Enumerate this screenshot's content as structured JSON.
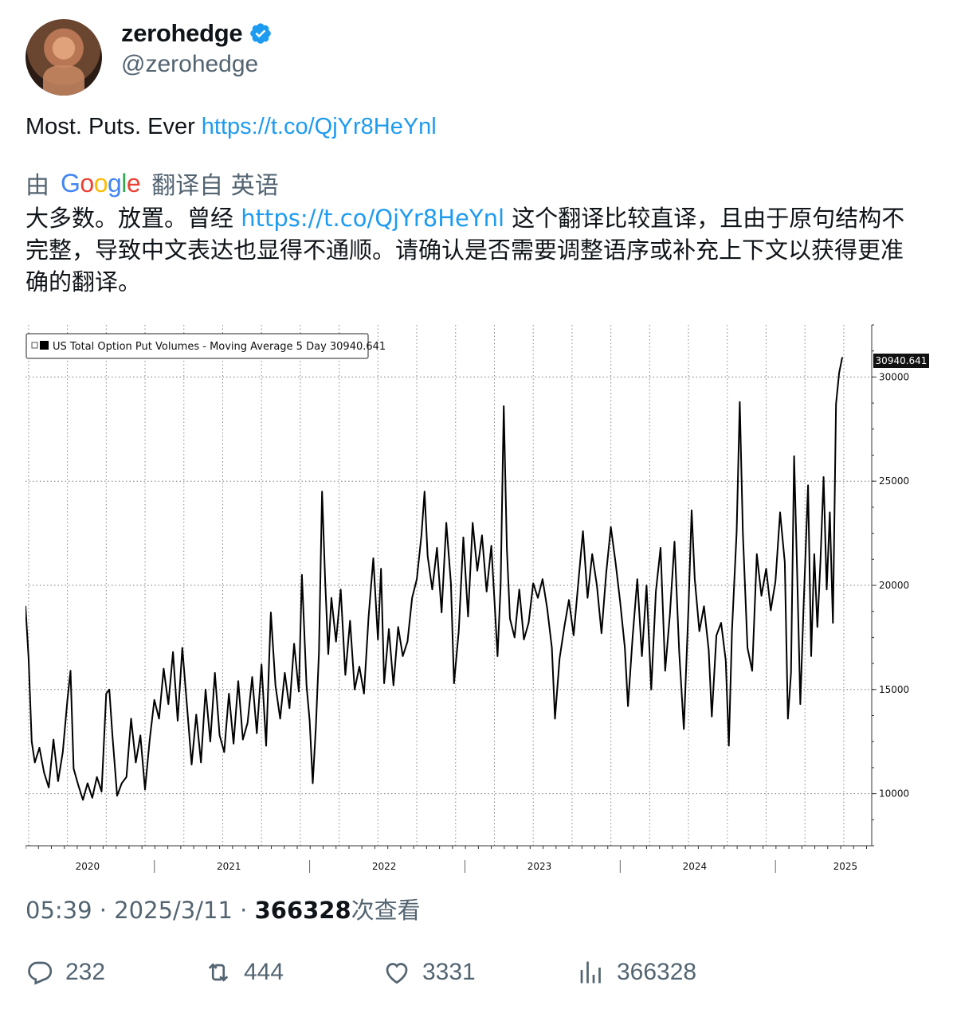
{
  "author": {
    "name": "zerohedge",
    "handle": "@zerohedge"
  },
  "tweet": {
    "text": "Most. Puts. Ever",
    "link": "https://t.co/QjYr8HeYnl"
  },
  "translation": {
    "by": "由",
    "provider": "Google",
    "from_label": "翻译自 英语",
    "text_before_link": "大多数。放置。曾经",
    "link": "https://t.co/QjYr8HeYnl",
    "text_after_link": "这个翻译比较直译，且由于原句结构不完整，导致中文表达也显得不通顺。请确认是否需要调整语序或补充上下文以获得更准确的翻译。"
  },
  "meta": {
    "time": "05:39",
    "date": "2025/3/11",
    "views": "366328",
    "views_suffix": "次查看"
  },
  "actions": {
    "replies": "232",
    "retweets": "444",
    "likes": "3331",
    "views": "366328"
  },
  "colors": {
    "link": "#1d9bf0",
    "muted": "#536471",
    "verified": "#1d9bf0"
  },
  "chart_data": {
    "type": "line",
    "title": "",
    "legend": "US Total Option Put Volumes - Moving Average 5 Day 30940.641",
    "last_value_label": "30940.641",
    "ylim": [
      7500,
      32500
    ],
    "yticks": [
      10000,
      15000,
      20000,
      25000,
      30000
    ],
    "xlim": [
      2019.75,
      2025.2
    ],
    "xtick_labels": [
      {
        "label": "2020",
        "at": 2020.15
      },
      {
        "label": "2021",
        "at": 2021.06
      },
      {
        "label": "2022",
        "at": 2022.06
      },
      {
        "label": "2023",
        "at": 2023.06
      },
      {
        "label": "2024",
        "at": 2024.06
      },
      {
        "label": "2025",
        "at": 2025.03
      }
    ],
    "year_separators": [
      2020.58,
      2021.58,
      2022.58,
      2023.58,
      2024.58
    ],
    "grid": true,
    "series": [
      {
        "values": [
          [
            2019.75,
            19000
          ],
          [
            2019.77,
            16500
          ],
          [
            2019.79,
            12500
          ],
          [
            2019.81,
            11500
          ],
          [
            2019.84,
            12200
          ],
          [
            2019.87,
            11000
          ],
          [
            2019.9,
            10300
          ],
          [
            2019.93,
            12600
          ],
          [
            2019.96,
            10600
          ],
          [
            2019.99,
            12000
          ],
          [
            2020.02,
            14500
          ],
          [
            2020.04,
            15900
          ],
          [
            2020.06,
            11200
          ],
          [
            2020.09,
            10400
          ],
          [
            2020.12,
            9700
          ],
          [
            2020.15,
            10500
          ],
          [
            2020.18,
            9800
          ],
          [
            2020.21,
            10800
          ],
          [
            2020.24,
            10100
          ],
          [
            2020.27,
            14800
          ],
          [
            2020.29,
            15000
          ],
          [
            2020.31,
            12800
          ],
          [
            2020.34,
            9900
          ],
          [
            2020.37,
            10500
          ],
          [
            2020.4,
            10800
          ],
          [
            2020.43,
            13600
          ],
          [
            2020.46,
            11500
          ],
          [
            2020.49,
            12800
          ],
          [
            2020.52,
            10200
          ],
          [
            2020.55,
            12600
          ],
          [
            2020.58,
            14500
          ],
          [
            2020.61,
            13600
          ],
          [
            2020.64,
            16000
          ],
          [
            2020.67,
            14300
          ],
          [
            2020.7,
            16800
          ],
          [
            2020.73,
            13500
          ],
          [
            2020.76,
            17000
          ],
          [
            2020.79,
            14200
          ],
          [
            2020.82,
            11400
          ],
          [
            2020.85,
            13800
          ],
          [
            2020.88,
            11500
          ],
          [
            2020.91,
            15000
          ],
          [
            2020.94,
            12500
          ],
          [
            2020.97,
            15800
          ],
          [
            2021.0,
            12800
          ],
          [
            2021.03,
            12000
          ],
          [
            2021.06,
            14800
          ],
          [
            2021.09,
            12400
          ],
          [
            2021.12,
            15400
          ],
          [
            2021.15,
            12600
          ],
          [
            2021.18,
            13400
          ],
          [
            2021.21,
            15600
          ],
          [
            2021.24,
            12900
          ],
          [
            2021.27,
            16200
          ],
          [
            2021.3,
            12300
          ],
          [
            2021.33,
            18700
          ],
          [
            2021.36,
            15200
          ],
          [
            2021.39,
            13600
          ],
          [
            2021.42,
            15800
          ],
          [
            2021.45,
            14100
          ],
          [
            2021.48,
            17200
          ],
          [
            2021.51,
            14900
          ],
          [
            2021.53,
            20500
          ],
          [
            2021.56,
            15200
          ],
          [
            2021.58,
            13500
          ],
          [
            2021.6,
            10500
          ],
          [
            2021.62,
            13200
          ],
          [
            2021.64,
            16800
          ],
          [
            2021.66,
            24500
          ],
          [
            2021.68,
            20200
          ],
          [
            2021.7,
            16700
          ],
          [
            2021.72,
            19400
          ],
          [
            2021.75,
            17300
          ],
          [
            2021.78,
            19800
          ],
          [
            2021.81,
            15700
          ],
          [
            2021.84,
            18300
          ],
          [
            2021.87,
            15000
          ],
          [
            2021.9,
            16100
          ],
          [
            2021.93,
            14800
          ],
          [
            2021.96,
            18500
          ],
          [
            2021.99,
            21300
          ],
          [
            2022.02,
            17400
          ],
          [
            2022.04,
            20800
          ],
          [
            2022.06,
            15300
          ],
          [
            2022.09,
            17900
          ],
          [
            2022.12,
            15200
          ],
          [
            2022.15,
            18000
          ],
          [
            2022.18,
            16600
          ],
          [
            2022.21,
            17300
          ],
          [
            2022.24,
            19400
          ],
          [
            2022.27,
            20300
          ],
          [
            2022.3,
            22400
          ],
          [
            2022.32,
            24500
          ],
          [
            2022.34,
            21400
          ],
          [
            2022.37,
            19800
          ],
          [
            2022.4,
            21800
          ],
          [
            2022.43,
            18700
          ],
          [
            2022.46,
            23000
          ],
          [
            2022.49,
            20100
          ],
          [
            2022.51,
            15300
          ],
          [
            2022.54,
            17800
          ],
          [
            2022.57,
            22300
          ],
          [
            2022.6,
            18500
          ],
          [
            2022.63,
            23000
          ],
          [
            2022.66,
            20700
          ],
          [
            2022.69,
            22400
          ],
          [
            2022.72,
            19700
          ],
          [
            2022.75,
            21900
          ],
          [
            2022.77,
            19300
          ],
          [
            2022.79,
            16600
          ],
          [
            2022.81,
            20000
          ],
          [
            2022.83,
            28600
          ],
          [
            2022.85,
            21800
          ],
          [
            2022.87,
            18400
          ],
          [
            2022.9,
            17500
          ],
          [
            2022.93,
            19800
          ],
          [
            2022.96,
            17400
          ],
          [
            2022.99,
            18200
          ],
          [
            2023.02,
            20100
          ],
          [
            2023.05,
            19400
          ],
          [
            2023.08,
            20300
          ],
          [
            2023.11,
            18900
          ],
          [
            2023.14,
            17000
          ],
          [
            2023.16,
            13600
          ],
          [
            2023.19,
            16500
          ],
          [
            2023.22,
            18000
          ],
          [
            2023.25,
            19300
          ],
          [
            2023.28,
            17600
          ],
          [
            2023.31,
            20100
          ],
          [
            2023.34,
            22600
          ],
          [
            2023.37,
            19400
          ],
          [
            2023.4,
            21500
          ],
          [
            2023.43,
            20000
          ],
          [
            2023.46,
            17700
          ],
          [
            2023.49,
            20600
          ],
          [
            2023.52,
            22800
          ],
          [
            2023.55,
            21100
          ],
          [
            2023.58,
            19200
          ],
          [
            2023.61,
            17000
          ],
          [
            2023.63,
            14200
          ],
          [
            2023.66,
            17500
          ],
          [
            2023.69,
            20300
          ],
          [
            2023.72,
            16600
          ],
          [
            2023.75,
            20000
          ],
          [
            2023.78,
            15000
          ],
          [
            2023.81,
            19700
          ],
          [
            2023.84,
            21800
          ],
          [
            2023.87,
            15900
          ],
          [
            2023.9,
            18600
          ],
          [
            2023.93,
            22100
          ],
          [
            2023.96,
            16800
          ],
          [
            2023.99,
            13100
          ],
          [
            2024.02,
            19000
          ],
          [
            2024.04,
            23600
          ],
          [
            2024.06,
            20300
          ],
          [
            2024.09,
            17800
          ],
          [
            2024.12,
            19000
          ],
          [
            2024.15,
            16900
          ],
          [
            2024.17,
            13700
          ],
          [
            2024.2,
            17600
          ],
          [
            2024.23,
            18200
          ],
          [
            2024.26,
            16400
          ],
          [
            2024.28,
            12300
          ],
          [
            2024.3,
            17800
          ],
          [
            2024.33,
            22600
          ],
          [
            2024.35,
            28800
          ],
          [
            2024.37,
            22500
          ],
          [
            2024.4,
            17000
          ],
          [
            2024.43,
            15900
          ],
          [
            2024.46,
            21500
          ],
          [
            2024.49,
            19500
          ],
          [
            2024.52,
            20800
          ],
          [
            2024.55,
            18800
          ],
          [
            2024.58,
            20200
          ],
          [
            2024.61,
            23500
          ],
          [
            2024.64,
            21100
          ],
          [
            2024.66,
            13600
          ],
          [
            2024.68,
            15800
          ],
          [
            2024.7,
            26200
          ],
          [
            2024.72,
            20500
          ],
          [
            2024.74,
            14300
          ],
          [
            2024.76,
            18800
          ],
          [
            2024.79,
            24800
          ],
          [
            2024.81,
            16600
          ],
          [
            2024.83,
            21500
          ],
          [
            2024.85,
            18000
          ],
          [
            2024.87,
            21200
          ],
          [
            2024.89,
            25200
          ],
          [
            2024.91,
            19800
          ],
          [
            2024.93,
            23500
          ],
          [
            2024.95,
            18200
          ],
          [
            2024.97,
            28700
          ],
          [
            2024.99,
            30200
          ],
          [
            2025.01,
            30940
          ]
        ]
      }
    ]
  }
}
